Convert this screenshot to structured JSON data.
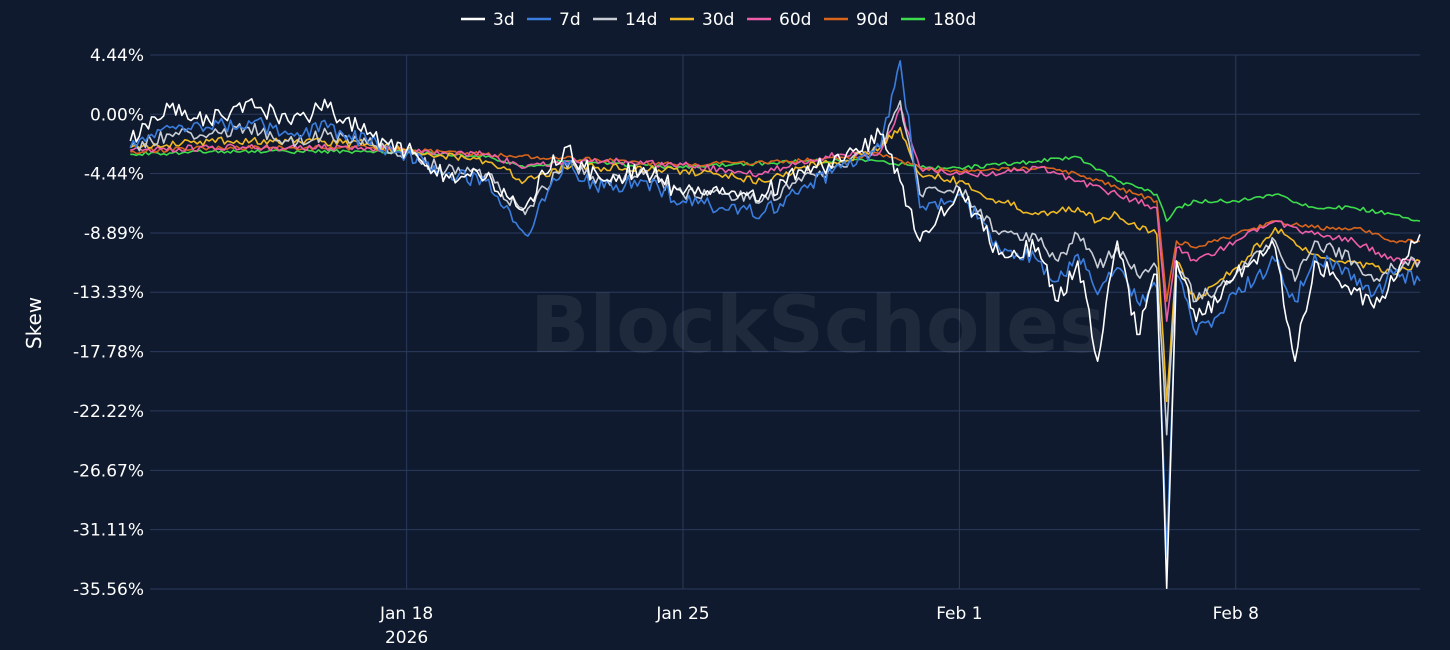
{
  "watermark": "BlockScholes",
  "chart_data": {
    "type": "line",
    "title": "",
    "xlabel": "",
    "ylabel": "Skew",
    "x_range": [
      "2026-01-11T12:00",
      "2026-02-12T16:00"
    ],
    "ylim": [
      -35.56,
      4.44
    ],
    "y_ticks": [
      4.44,
      0.0,
      -4.44,
      -8.89,
      -13.33,
      -17.78,
      -22.22,
      -26.67,
      -31.11,
      -35.56
    ],
    "y_tick_labels": [
      "4.44%",
      "0.00%",
      "-4.44%",
      "-8.89%",
      "-13.33%",
      "-17.78%",
      "-22.22%",
      "-26.67%",
      "-31.11%",
      "-35.56%"
    ],
    "x_ticks": [
      "2026-01-18",
      "2026-01-25",
      "2026-02-01",
      "2026-02-08"
    ],
    "x_tick_labels": [
      "Jan 18",
      "Jan 25",
      "Feb 1",
      "Feb 8"
    ],
    "x_year_label": "2026",
    "grid": true,
    "legend_position": "top-center",
    "series": [
      {
        "name": "3d",
        "color": "#ffffff",
        "x": [
          "2026-01-11",
          "2026-01-12",
          "2026-01-13",
          "2026-01-14",
          "2026-01-15",
          "2026-01-16",
          "2026-01-17",
          "2026-01-18",
          "2026-01-19",
          "2026-01-20",
          "2026-01-21",
          "2026-01-21T12:00",
          "2026-01-22",
          "2026-01-22T12:00",
          "2026-01-23",
          "2026-01-24",
          "2026-01-25",
          "2026-01-26",
          "2026-01-27",
          "2026-01-28",
          "2026-01-29",
          "2026-01-30",
          "2026-01-30T12:00",
          "2026-01-31",
          "2026-02-01",
          "2026-02-02",
          "2026-02-03",
          "2026-02-03T12:00",
          "2026-02-04",
          "2026-02-04T12:00",
          "2026-02-05",
          "2026-02-05T12:00",
          "2026-02-06",
          "2026-02-06T06:00",
          "2026-02-06T12:00",
          "2026-02-07",
          "2026-02-08",
          "2026-02-09",
          "2026-02-09T12:00",
          "2026-02-10",
          "2026-02-11",
          "2026-02-11T12:00",
          "2026-02-12",
          "2026-02-12T16:00"
        ],
        "y": [
          -2.0,
          0.5,
          -0.5,
          1.0,
          -0.5,
          0.5,
          -1.5,
          -2.7,
          -4.5,
          -4.8,
          -7.0,
          -4.5,
          -2.5,
          -4.0,
          -5.0,
          -4.0,
          -6.0,
          -5.5,
          -6.0,
          -4.2,
          -3.5,
          -1.5,
          -5.0,
          -9.5,
          -5.5,
          -10.5,
          -10.0,
          -14.0,
          -11.0,
          -18.5,
          -9.5,
          -16.5,
          -12.0,
          -35.5,
          -11.0,
          -15.5,
          -12.0,
          -10.0,
          -18.5,
          -11.0,
          -13.0,
          -14.5,
          -12.5,
          -9.0
        ]
      },
      {
        "name": "7d",
        "color": "#3b7ddd",
        "x": [
          "2026-01-11",
          "2026-01-12",
          "2026-01-13",
          "2026-01-14",
          "2026-01-15",
          "2026-01-16",
          "2026-01-17",
          "2026-01-18",
          "2026-01-19",
          "2026-01-20",
          "2026-01-21",
          "2026-01-21T12:00",
          "2026-01-22",
          "2026-01-22T12:00",
          "2026-01-23",
          "2026-01-24",
          "2026-01-25",
          "2026-01-26",
          "2026-01-27",
          "2026-01-28",
          "2026-01-29",
          "2026-01-30",
          "2026-01-30T12:00",
          "2026-01-31",
          "2026-02-01",
          "2026-02-02",
          "2026-02-03",
          "2026-02-03T12:00",
          "2026-02-04",
          "2026-02-04T12:00",
          "2026-02-05",
          "2026-02-05T12:00",
          "2026-02-06",
          "2026-02-06T06:00",
          "2026-02-06T12:00",
          "2026-02-07",
          "2026-02-08",
          "2026-02-09",
          "2026-02-09T12:00",
          "2026-02-10",
          "2026-02-11",
          "2026-02-11T12:00",
          "2026-02-12",
          "2026-02-12T16:00"
        ],
        "y": [
          -2.5,
          -1.0,
          -1.0,
          -0.5,
          -1.5,
          -1.0,
          -2.0,
          -3.0,
          -4.5,
          -5.0,
          -9.0,
          -6.5,
          -3.5,
          -5.0,
          -5.5,
          -5.0,
          -6.5,
          -7.0,
          -7.5,
          -5.5,
          -4.0,
          -2.5,
          4.0,
          -7.0,
          -6.0,
          -10.0,
          -11.0,
          -12.5,
          -10.5,
          -13.5,
          -11.5,
          -14.0,
          -13.0,
          -33.0,
          -12.0,
          -16.5,
          -13.5,
          -11.0,
          -14.0,
          -10.5,
          -12.0,
          -13.5,
          -12.0,
          -12.5
        ]
      },
      {
        "name": "14d",
        "color": "#c8cdd6",
        "x": [
          "2026-01-11",
          "2026-01-12",
          "2026-01-13",
          "2026-01-14",
          "2026-01-15",
          "2026-01-16",
          "2026-01-17",
          "2026-01-18",
          "2026-01-19",
          "2026-01-20",
          "2026-01-21",
          "2026-01-21T12:00",
          "2026-01-22",
          "2026-01-22T12:00",
          "2026-01-23",
          "2026-01-24",
          "2026-01-25",
          "2026-01-26",
          "2026-01-27",
          "2026-01-28",
          "2026-01-29",
          "2026-01-30",
          "2026-01-30T12:00",
          "2026-01-31",
          "2026-02-01",
          "2026-02-02",
          "2026-02-03",
          "2026-02-03T12:00",
          "2026-02-04",
          "2026-02-04T12:00",
          "2026-02-05",
          "2026-02-05T12:00",
          "2026-02-06",
          "2026-02-06T06:00",
          "2026-02-06T12:00",
          "2026-02-07",
          "2026-02-08",
          "2026-02-09",
          "2026-02-09T12:00",
          "2026-02-10",
          "2026-02-11",
          "2026-02-11T12:00",
          "2026-02-12",
          "2026-02-12T16:00"
        ],
        "y": [
          -2.5,
          -1.5,
          -1.5,
          -1.0,
          -2.0,
          -1.5,
          -2.2,
          -3.0,
          -4.2,
          -4.5,
          -7.5,
          -5.5,
          -3.5,
          -4.5,
          -5.0,
          -4.5,
          -6.0,
          -6.0,
          -6.5,
          -5.0,
          -3.8,
          -2.5,
          1.0,
          -6.0,
          -5.5,
          -9.0,
          -9.5,
          -11.0,
          -9.0,
          -11.5,
          -10.0,
          -12.0,
          -11.5,
          -24.0,
          -11.0,
          -14.0,
          -12.0,
          -9.5,
          -12.5,
          -9.5,
          -11.0,
          -12.5,
          -11.5,
          -11.0
        ]
      },
      {
        "name": "30d",
        "color": "#f0b923",
        "x": [
          "2026-01-11",
          "2026-01-13",
          "2026-01-15",
          "2026-01-17",
          "2026-01-18",
          "2026-01-20",
          "2026-01-21",
          "2026-01-22",
          "2026-01-23",
          "2026-01-25",
          "2026-01-27",
          "2026-01-28",
          "2026-01-29",
          "2026-01-30",
          "2026-01-30T12:00",
          "2026-01-31",
          "2026-02-01",
          "2026-02-02",
          "2026-02-03",
          "2026-02-04",
          "2026-02-04T12:00",
          "2026-02-05",
          "2026-02-05T12:00",
          "2026-02-06",
          "2026-02-06T06:00",
          "2026-02-06T12:00",
          "2026-02-07",
          "2026-02-08",
          "2026-02-09",
          "2026-02-10",
          "2026-02-11",
          "2026-02-12",
          "2026-02-12T16:00"
        ],
        "y": [
          -2.5,
          -2.0,
          -2.0,
          -2.2,
          -2.7,
          -3.5,
          -5.0,
          -4.0,
          -4.0,
          -4.2,
          -5.0,
          -4.0,
          -3.5,
          -2.5,
          -1.0,
          -4.5,
          -5.0,
          -6.5,
          -7.5,
          -7.0,
          -8.0,
          -7.5,
          -8.5,
          -9.0,
          -21.5,
          -11.0,
          -14.0,
          -11.5,
          -8.5,
          -10.5,
          -11.0,
          -12.0,
          -11.0
        ]
      },
      {
        "name": "60d",
        "color": "#ee5ea8",
        "x": [
          "2026-01-11",
          "2026-01-13",
          "2026-01-15",
          "2026-01-17",
          "2026-01-18",
          "2026-01-20",
          "2026-01-21",
          "2026-01-22",
          "2026-01-23",
          "2026-01-25",
          "2026-01-27",
          "2026-01-28",
          "2026-01-29",
          "2026-01-30",
          "2026-01-30T12:00",
          "2026-01-31",
          "2026-02-01",
          "2026-02-02",
          "2026-02-03",
          "2026-02-04",
          "2026-02-05",
          "2026-02-06",
          "2026-02-06T06:00",
          "2026-02-06T12:00",
          "2026-02-07",
          "2026-02-08",
          "2026-02-09",
          "2026-02-10",
          "2026-02-11",
          "2026-02-12",
          "2026-02-12T16:00"
        ],
        "y": [
          -2.7,
          -2.5,
          -2.5,
          -2.5,
          -2.7,
          -3.0,
          -4.0,
          -3.5,
          -3.5,
          -3.8,
          -4.5,
          -3.5,
          -3.0,
          -2.8,
          0.5,
          -4.0,
          -4.5,
          -4.5,
          -4.0,
          -5.0,
          -6.0,
          -7.0,
          -15.5,
          -10.0,
          -11.0,
          -9.5,
          -8.0,
          -9.0,
          -9.5,
          -11.0,
          -11.0
        ]
      },
      {
        "name": "90d",
        "color": "#d9651c",
        "x": [
          "2026-01-11",
          "2026-01-13",
          "2026-01-15",
          "2026-01-17",
          "2026-01-18",
          "2026-01-20",
          "2026-01-22",
          "2026-01-25",
          "2026-01-28",
          "2026-01-30",
          "2026-01-31",
          "2026-02-01",
          "2026-02-02",
          "2026-02-03",
          "2026-02-04",
          "2026-02-05",
          "2026-02-06",
          "2026-02-06T06:00",
          "2026-02-06T12:00",
          "2026-02-07",
          "2026-02-08",
          "2026-02-09",
          "2026-02-10",
          "2026-02-11",
          "2026-02-12",
          "2026-02-12T16:00"
        ],
        "y": [
          -2.8,
          -2.5,
          -2.5,
          -2.5,
          -2.7,
          -3.0,
          -3.3,
          -3.8,
          -3.5,
          -3.0,
          -4.0,
          -4.3,
          -4.2,
          -4.0,
          -4.5,
          -5.5,
          -6.5,
          -14.0,
          -9.5,
          -10.0,
          -9.0,
          -8.0,
          -8.5,
          -8.5,
          -9.5,
          -9.5
        ]
      },
      {
        "name": "180d",
        "color": "#3ddc4c",
        "x": [
          "2026-01-11",
          "2026-01-13",
          "2026-01-15",
          "2026-01-17",
          "2026-01-18",
          "2026-01-20",
          "2026-01-21",
          "2026-01-22",
          "2026-01-25",
          "2026-01-28",
          "2026-01-30",
          "2026-01-31",
          "2026-02-01",
          "2026-02-02",
          "2026-02-03",
          "2026-02-04",
          "2026-02-05",
          "2026-02-06",
          "2026-02-06T06:00",
          "2026-02-06T12:00",
          "2026-02-07",
          "2026-02-08",
          "2026-02-09",
          "2026-02-10",
          "2026-02-11",
          "2026-02-12",
          "2026-02-12T16:00"
        ],
        "y": [
          -3.0,
          -2.8,
          -2.8,
          -2.8,
          -2.8,
          -3.2,
          -4.0,
          -3.5,
          -4.0,
          -3.5,
          -3.5,
          -4.0,
          -4.0,
          -3.8,
          -3.5,
          -3.2,
          -5.0,
          -6.0,
          -8.0,
          -7.0,
          -6.5,
          -6.5,
          -6.0,
          -7.0,
          -7.0,
          -7.5,
          -8.0
        ]
      }
    ]
  }
}
